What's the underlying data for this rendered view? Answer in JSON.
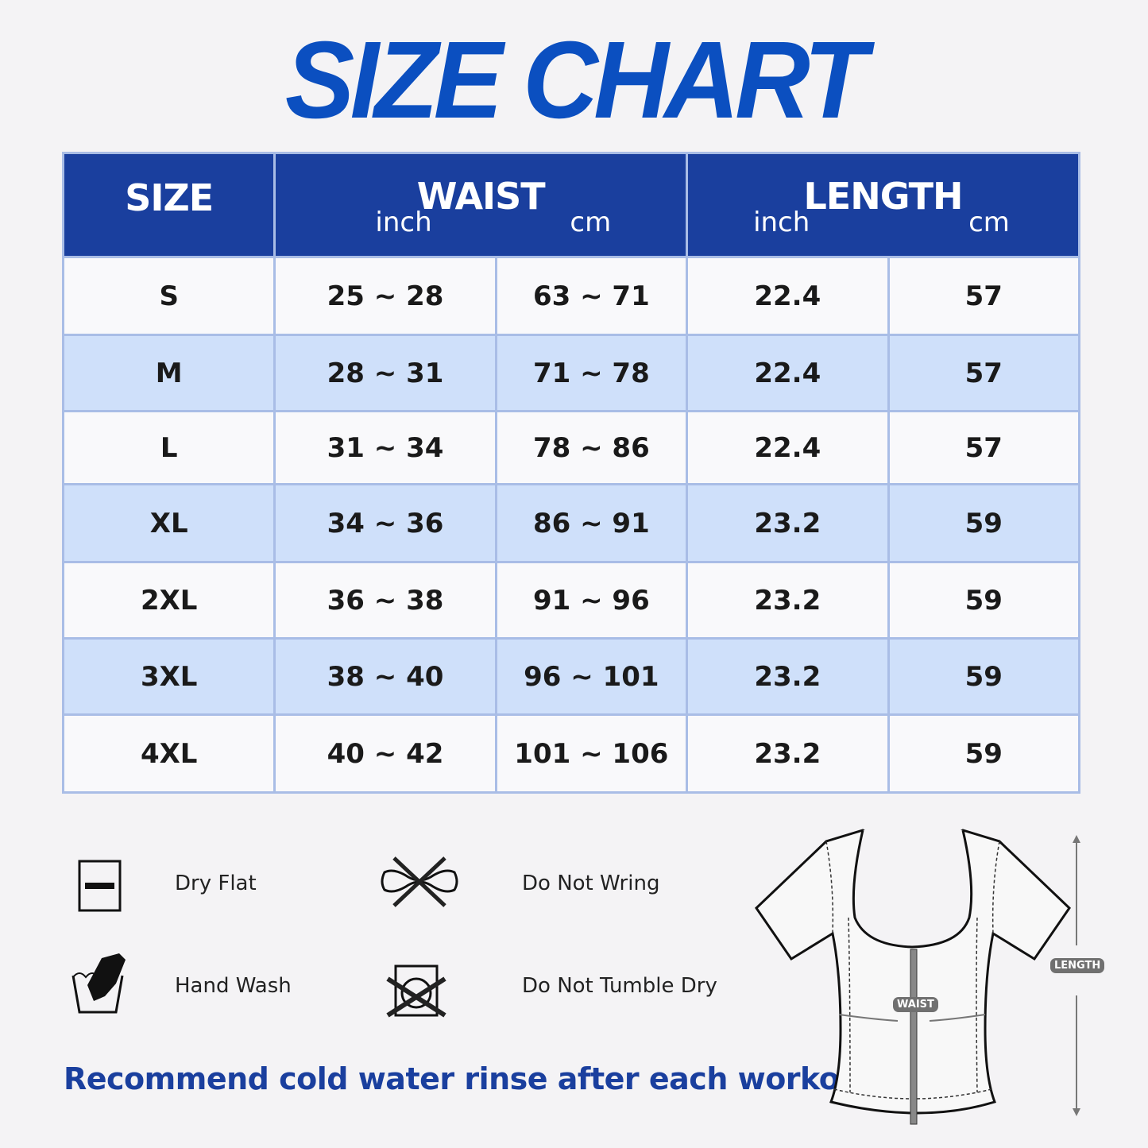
{
  "title": "SIZE CHART",
  "table": {
    "headers": {
      "size": "SIZE",
      "waist": "WAIST",
      "length": "LENGTH",
      "inch": "inch",
      "cm": "cm"
    },
    "rows": [
      {
        "size": "S",
        "waist_inch": "25 ~ 28",
        "waist_cm": "63 ~ 71",
        "length_inch": "22.4",
        "length_cm": "57"
      },
      {
        "size": "M",
        "waist_inch": "28 ~ 31",
        "waist_cm": "71 ~ 78",
        "length_inch": "22.4",
        "length_cm": "57"
      },
      {
        "size": "L",
        "waist_inch": "31 ~ 34",
        "waist_cm": "78 ~ 86",
        "length_inch": "22.4",
        "length_cm": "57"
      },
      {
        "size": "XL",
        "waist_inch": "34 ~ 36",
        "waist_cm": "86 ~ 91",
        "length_inch": "23.2",
        "length_cm": "59"
      },
      {
        "size": "2XL",
        "waist_inch": "36 ~ 38",
        "waist_cm": "91 ~ 96",
        "length_inch": "23.2",
        "length_cm": "59"
      },
      {
        "size": "3XL",
        "waist_inch": "38 ~ 40",
        "waist_cm": "96 ~ 101",
        "length_inch": "23.2",
        "length_cm": "59"
      },
      {
        "size": "4XL",
        "waist_inch": "40 ~ 42",
        "waist_cm": "101 ~ 106",
        "length_inch": "23.2",
        "length_cm": "59"
      }
    ]
  },
  "care": [
    {
      "icon": "dry-flat-icon",
      "label": "Dry Flat"
    },
    {
      "icon": "do-not-wring-icon",
      "label": "Do Not Wring"
    },
    {
      "icon": "hand-wash-icon",
      "label": "Hand Wash"
    },
    {
      "icon": "do-not-tumble-dry-icon",
      "label": "Do Not Tumble Dry"
    }
  ],
  "note": "Recommend cold water rinse after each workout.",
  "diagram": {
    "waist_label": "WAIST",
    "length_label": "LENGTH"
  },
  "colors": {
    "header": "#1a3f9e",
    "title": "#0b4fc0",
    "alt_row": "#cfe0fa",
    "border": "#a9bde6"
  }
}
